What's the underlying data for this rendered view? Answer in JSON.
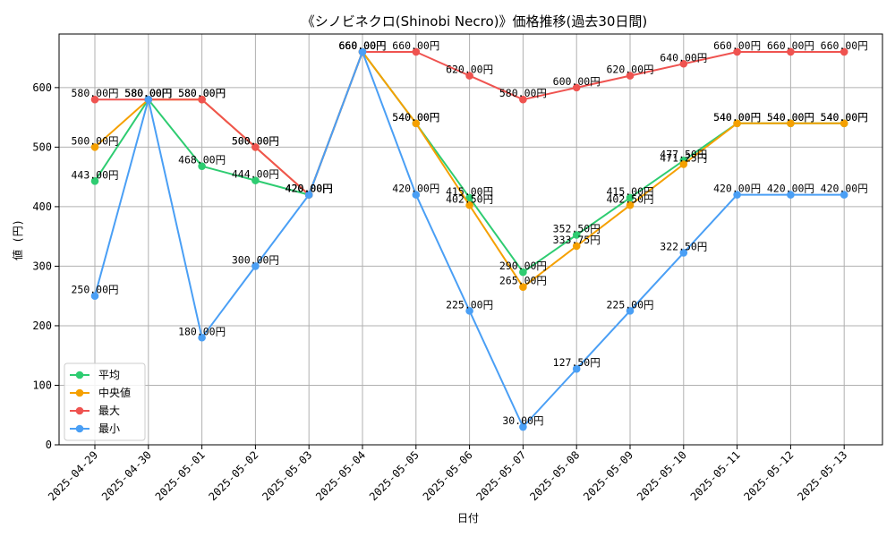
{
  "chart_data": {
    "type": "line",
    "title": "《シノビネクロ(Shinobi Necro)》価格推移(過去30日間)",
    "xlabel": "日付",
    "ylabel": "値 (円)",
    "ylim": [
      0,
      690
    ],
    "yticks": [
      0,
      100,
      200,
      300,
      400,
      500,
      600
    ],
    "grid": true,
    "legend_position": "lower-left",
    "value_suffix": "円",
    "categories": [
      "2025-04-29",
      "2025-04-30",
      "2025-05-01",
      "2025-05-02",
      "2025-05-03",
      "2025-05-04",
      "2025-05-05",
      "2025-05-06",
      "2025-05-07",
      "2025-05-08",
      "2025-05-09",
      "2025-05-10",
      "2025-05-11",
      "2025-05-12",
      "2025-05-13"
    ],
    "series": [
      {
        "name": "平均",
        "color": "#2ecc71",
        "values": [
          443,
          580,
          468,
          444,
          420,
          660,
          540,
          415,
          290,
          352.5,
          415,
          477.5,
          540,
          540,
          540
        ]
      },
      {
        "name": "中央値",
        "color": "#f5a000",
        "values": [
          500,
          580,
          580,
          500,
          420,
          660,
          540,
          402.5,
          265,
          333.75,
          402.5,
          471.25,
          540,
          540,
          540
        ]
      },
      {
        "name": "最大",
        "color": "#ef5350",
        "values": [
          580,
          580,
          580,
          500,
          420,
          660,
          660,
          620,
          580,
          600,
          620,
          640,
          660,
          660,
          660
        ]
      },
      {
        "name": "最小",
        "color": "#4a9ff5",
        "values": [
          250,
          580,
          180,
          300,
          420,
          660,
          420,
          225,
          30,
          127.5,
          225,
          322.5,
          420,
          420,
          420
        ]
      }
    ]
  }
}
